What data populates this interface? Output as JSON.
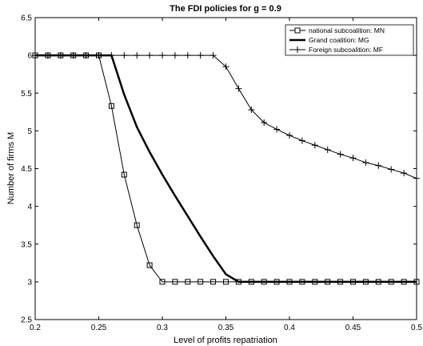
{
  "chart_data": {
    "type": "line",
    "title": "The FDI policies for g = 0.9",
    "xlabel": "Level of profits repatriation",
    "ylabel": "Number of firms M",
    "xlim": [
      0.2,
      0.5
    ],
    "ylim": [
      2.5,
      6.5
    ],
    "xticks": [
      0.2,
      0.25,
      0.3,
      0.35,
      0.4,
      0.45,
      0.5
    ],
    "xtick_labels": [
      "0.2",
      "0.25",
      "0.3",
      "0.35",
      "0.4",
      "0.45",
      "0.5"
    ],
    "yticks": [
      2.5,
      3,
      3.5,
      4,
      4.5,
      5,
      5.5,
      6,
      6.5
    ],
    "ytick_labels": [
      "2.5",
      "3",
      "3.5",
      "4",
      "4.5",
      "5",
      "5.5",
      "6",
      "6.5"
    ],
    "grid": false,
    "legend_position": "top-right",
    "x": [
      0.2,
      0.21,
      0.22,
      0.23,
      0.24,
      0.25,
      0.26,
      0.27,
      0.28,
      0.29,
      0.3,
      0.31,
      0.32,
      0.33,
      0.34,
      0.35,
      0.36,
      0.37,
      0.38,
      0.39,
      0.4,
      0.41,
      0.42,
      0.43,
      0.44,
      0.45,
      0.46,
      0.47,
      0.48,
      0.49,
      0.5
    ],
    "series": [
      {
        "name": "national subcoalition: MN",
        "marker": "square",
        "line_width": "thin",
        "color": "#000000",
        "values": [
          6,
          6,
          6,
          6,
          6,
          6,
          5.33,
          4.42,
          3.75,
          3.22,
          3,
          3,
          3,
          3,
          3,
          3,
          3,
          3,
          3,
          3,
          3,
          3,
          3,
          3,
          3,
          3,
          3,
          3,
          3,
          3,
          3
        ]
      },
      {
        "name": "Grand coalition: MG",
        "marker": "none",
        "line_width": "thick",
        "color": "#000000",
        "values": [
          6,
          6,
          6,
          6,
          6,
          6,
          6,
          5.48,
          5.05,
          4.72,
          4.42,
          4.14,
          3.87,
          3.6,
          3.34,
          3.1,
          3,
          3,
          3,
          3,
          3,
          3,
          3,
          3,
          3,
          3,
          3,
          3,
          3,
          3,
          3
        ]
      },
      {
        "name": "Foreign subcoalition: MF",
        "marker": "plus",
        "line_width": "thin",
        "color": "#000000",
        "values": [
          6,
          6,
          6,
          6,
          6,
          6,
          6,
          6,
          6,
          6,
          6,
          6,
          6,
          6,
          6,
          5.85,
          5.56,
          5.28,
          5.11,
          5.02,
          4.94,
          4.87,
          4.81,
          4.75,
          4.69,
          4.64,
          4.58,
          4.54,
          4.49,
          4.44,
          4.37
        ]
      }
    ]
  }
}
